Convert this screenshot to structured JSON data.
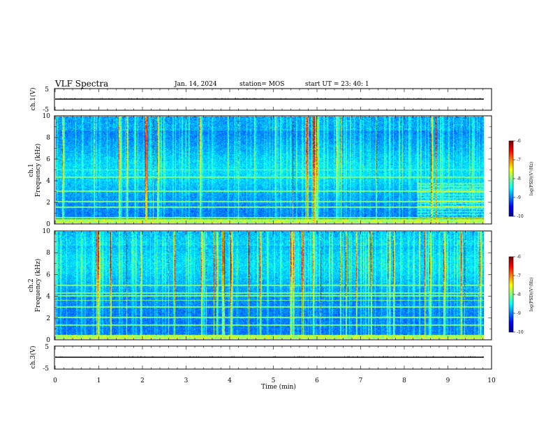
{
  "header": {
    "title": "VLF Spectra",
    "date": "Jan. 14, 2024",
    "station": "station= MOS",
    "start": "start UT =  23: 40: 1"
  },
  "colors": {
    "colormap": [
      "#00008f",
      "#0000ff",
      "#0080ff",
      "#00ffff",
      "#80ff80",
      "#ffff00",
      "#ff8000",
      "#ff0000",
      "#800000"
    ],
    "background": "#000000",
    "trace": "#000000"
  },
  "chart_data": [
    {
      "type": "line",
      "title": "",
      "ylabel": "ch.1(V)",
      "ylim": [
        -5,
        5
      ],
      "yticks": [
        "5",
        "-5"
      ],
      "grid": false,
      "series": [
        {
          "values_description": "",
          "level": 0
        }
      ]
    },
    {
      "type": "heatmap",
      "ylabel": "ch.1\nFrequency (kHz)",
      "ylim": [
        0,
        10
      ],
      "yticks": [
        "0",
        "2",
        "4",
        "6",
        "8",
        "10"
      ],
      "xlim": [
        0,
        10
      ],
      "colorbar": {
        "label": "log(PSD)(V²/Hz)",
        "range": [
          -10,
          -6
        ],
        "ticks": [
          "-6",
          "-7",
          "-8",
          "-9",
          "-10"
        ]
      },
      "features": {
        "sferic_columns": "broadband impulsive vertical streaks across 0–10 kHz throughout 0–9.8 min",
        "narrowband_lines_kHz": [
          0.5,
          1.5,
          2.0,
          3.0,
          4.3,
          5.0
        ],
        "enhanced_noise_after_min": 8.3
      }
    },
    {
      "type": "heatmap",
      "ylabel": "ch.2\nFrequency (kHz)",
      "ylim": [
        0,
        10
      ],
      "yticks": [
        "0",
        "2",
        "4",
        "6",
        "8",
        "10"
      ],
      "xlim": [
        0,
        10
      ],
      "colorbar": {
        "label": "log(PSD)(V²/Hz)",
        "range": [
          -10,
          -6
        ],
        "ticks": [
          "-6",
          "-7",
          "-8",
          "-9",
          "-10"
        ]
      },
      "features": {
        "sferic_columns": "broadband impulsive vertical streaks, strongest 5–9 kHz",
        "narrowband_lines_kHz": [
          1.3,
          2.0,
          3.0,
          3.6,
          4.0,
          4.3,
          5.0
        ]
      }
    },
    {
      "type": "line",
      "ylabel": "ch.3(V)",
      "ylim": [
        -5,
        5
      ],
      "yticks": [
        "5",
        "-5"
      ],
      "xlabel": "Time (min)",
      "xlim": [
        0,
        10
      ],
      "xticks": [
        "0",
        "1",
        "2",
        "3",
        "4",
        "5",
        "6",
        "7",
        "8",
        "9",
        "10"
      ],
      "series": [
        {
          "level": 0
        }
      ]
    }
  ],
  "data_end_min": 9.85
}
